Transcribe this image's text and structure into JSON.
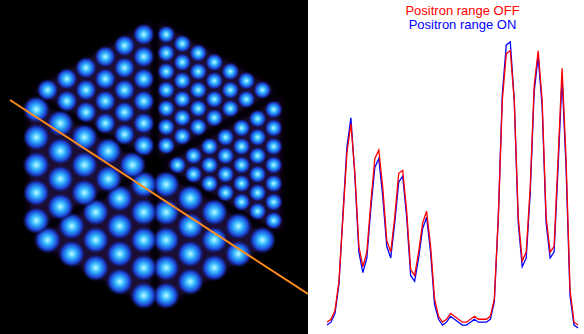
{
  "chart_data": {
    "type": "line",
    "series": [
      {
        "name": "Positron range OFF",
        "color": "#ff0000",
        "values": [
          4,
          5,
          8,
          18,
          40,
          62,
          72,
          55,
          30,
          23,
          28,
          45,
          60,
          63,
          50,
          32,
          28,
          40,
          55,
          56,
          42,
          22,
          20,
          28,
          38,
          42,
          30,
          12,
          6,
          4,
          5,
          7,
          6,
          5,
          4,
          4,
          5,
          6,
          5,
          5,
          5,
          6,
          12,
          40,
          80,
          96,
          97,
          80,
          40,
          25,
          28,
          50,
          85,
          97,
          80,
          40,
          28,
          30,
          60,
          91,
          60,
          15,
          4,
          3
        ]
      },
      {
        "name": "Positron range ON",
        "color": "#0000ff",
        "values": [
          3,
          4,
          7,
          17,
          41,
          64,
          74,
          54,
          28,
          21,
          26,
          43,
          57,
          60,
          47,
          30,
          26,
          38,
          52,
          54,
          40,
          20,
          18,
          26,
          36,
          40,
          28,
          10,
          5,
          3,
          4,
          6,
          5,
          4,
          3,
          3,
          4,
          5,
          4,
          4,
          4,
          5,
          11,
          40,
          82,
          99,
          100,
          80,
          38,
          23,
          26,
          48,
          83,
          95,
          78,
          38,
          26,
          28,
          57,
          88,
          57,
          13,
          3,
          2
        ]
      }
    ],
    "legend": "top",
    "tick_labels": false
  }
}
